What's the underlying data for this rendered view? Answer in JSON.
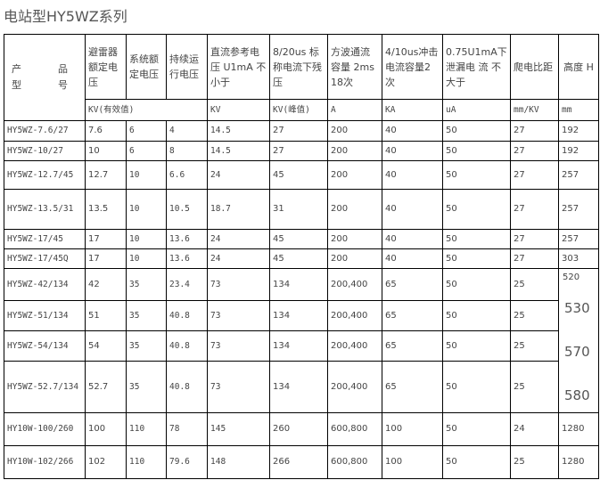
{
  "title": "电站型HY5WZ系列",
  "headers": {
    "product": [
      "产",
      "品",
      "型",
      "号"
    ],
    "cols": [
      "避雷器额定电压",
      "系统额定电压",
      "持续运行电压",
      "直流参考电压 U1mA 不小于",
      "8/20us 标称电流下残压",
      "方波通流容量 2ms 18次",
      "4/10us冲击电流容量2次",
      "0.75U1mA下泄漏电 流 不大于",
      "爬电比距",
      "高度 H"
    ]
  },
  "units": [
    "KV(有效值)",
    "KV",
    "KV(峰值)",
    "A",
    "KA",
    "uA",
    "mm/KV",
    "mm"
  ],
  "rows": [
    [
      "HY5WZ-7.6/27",
      "7.6",
      "6",
      "4",
      "14.5",
      "27",
      "200",
      "40",
      "50",
      "27",
      "192"
    ],
    [
      "HY5WZ-10/27",
      "10",
      "6",
      "8",
      "14.5",
      "27",
      "200",
      "40",
      "50",
      "27",
      "192"
    ],
    [
      "HY5WZ-12.7/45",
      "12.7",
      "10",
      "6.6",
      "24",
      "45",
      "200",
      "40",
      "50",
      "27",
      "257"
    ],
    [
      "HY5WZ-13.5/31",
      "13.5",
      "10",
      "10.5",
      "18.7",
      "31",
      "200",
      "40",
      "50",
      "27",
      "257"
    ],
    [
      "HY5WZ-17/45",
      "17",
      "10",
      "13.6",
      "24",
      "45",
      "200",
      "40",
      "50",
      "27",
      "257"
    ],
    [
      "HY5WZ-17/45Q",
      "17",
      "10",
      "13.6",
      "24",
      "45",
      "200",
      "40",
      "50",
      "27",
      "303"
    ],
    [
      "HY5WZ-42/134",
      "42",
      "35",
      "23.4",
      "73",
      "134",
      "200,400",
      "65",
      "50",
      "25",
      ""
    ],
    [
      "HY5WZ-51/134",
      "51",
      "35",
      "40.8",
      "73",
      "134",
      "200,400",
      "65",
      "50",
      "25",
      ""
    ],
    [
      "HY5WZ-54/134",
      "54",
      "35",
      "40.8",
      "73",
      "134",
      "200,400",
      "65",
      "50",
      "25",
      ""
    ],
    [
      "HY5WZ-52.7/134",
      "52.7",
      "35",
      "40.8",
      "73",
      "134",
      "200,400",
      "65",
      "50",
      "25",
      ""
    ],
    [
      "HY10W-100/260",
      "100",
      "110",
      "78",
      "145",
      "260",
      "600,800",
      "100",
      "50",
      "24",
      "1280"
    ],
    [
      "HY10W-102/266",
      "102",
      "110",
      "79.6",
      "148",
      "266",
      "600,800",
      "100",
      "50",
      "25",
      "1280"
    ]
  ],
  "merged_height": [
    "520",
    "530",
    "570",
    "580"
  ]
}
